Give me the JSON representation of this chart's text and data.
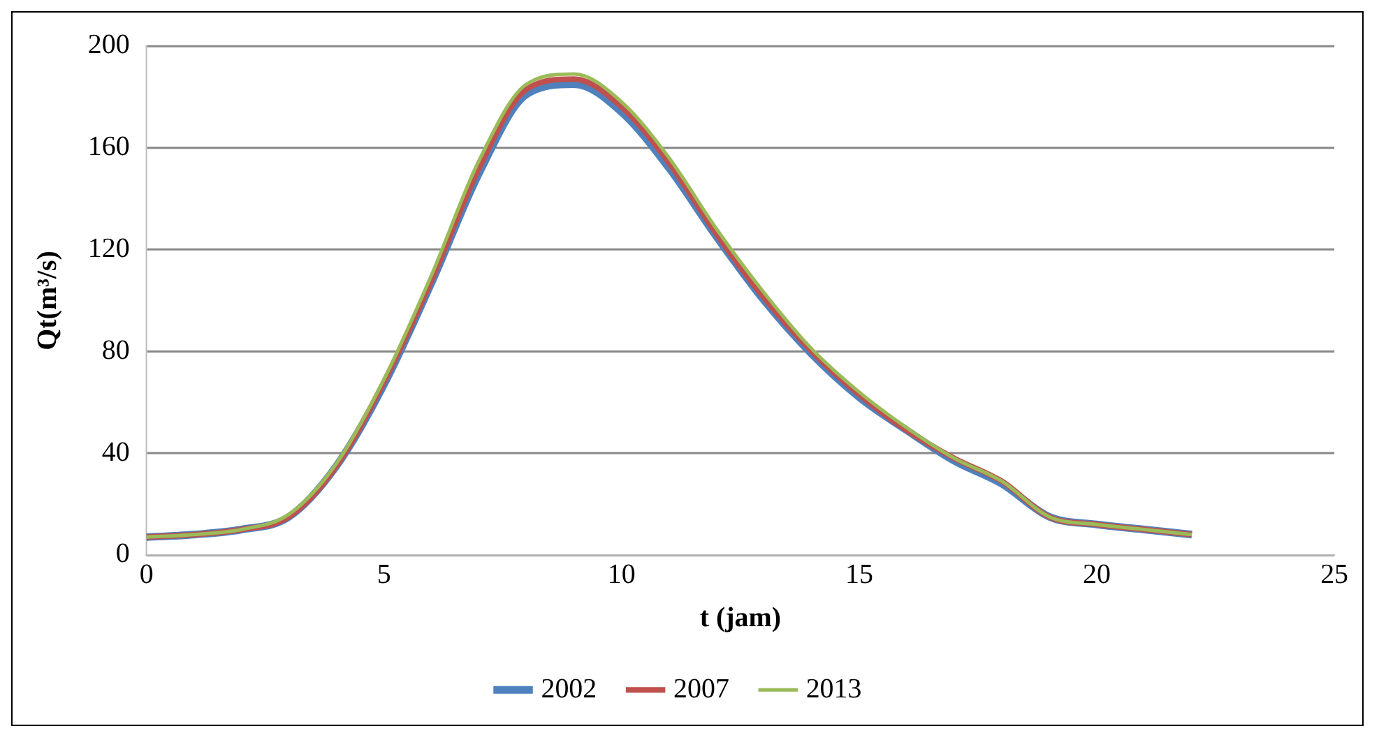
{
  "chart_data": {
    "type": "line",
    "xlabel": "t (jam)",
    "ylabel": "Qt(m³/s)",
    "x": [
      0,
      1,
      2,
      3,
      4,
      5,
      6,
      7,
      8,
      9,
      10,
      11,
      12,
      13,
      14,
      15,
      16,
      17,
      18,
      19,
      20,
      21,
      22
    ],
    "series": [
      {
        "name": "2002",
        "color": "#4f81bd",
        "values": [
          7,
          8,
          10,
          15,
          35,
          67,
          107,
          150,
          181,
          185,
          174,
          152,
          125,
          100,
          79,
          62,
          49,
          37,
          28,
          15,
          12,
          10,
          8
        ]
      },
      {
        "name": "2007",
        "color": "#c0504d",
        "values": [
          7,
          8,
          10,
          15,
          35,
          68,
          108,
          152,
          183,
          187,
          176,
          154,
          126,
          101,
          80,
          63,
          49,
          38,
          29,
          15,
          12,
          10,
          8
        ]
      },
      {
        "name": "2013",
        "color": "#9bbb59",
        "values": [
          7,
          8,
          10,
          16,
          36,
          69,
          110,
          155,
          185,
          189,
          178,
          156,
          128,
          103,
          81,
          64,
          50,
          38,
          29,
          15,
          12,
          10,
          8
        ]
      }
    ],
    "xlim": [
      0,
      25
    ],
    "xticks": [
      0,
      5,
      10,
      15,
      20,
      25
    ],
    "ylim": [
      0,
      200
    ],
    "yticks": [
      0,
      40,
      80,
      120,
      160,
      200
    ],
    "grid": "y",
    "legend": "bottom",
    "marker": "none",
    "line_style": "solid"
  }
}
